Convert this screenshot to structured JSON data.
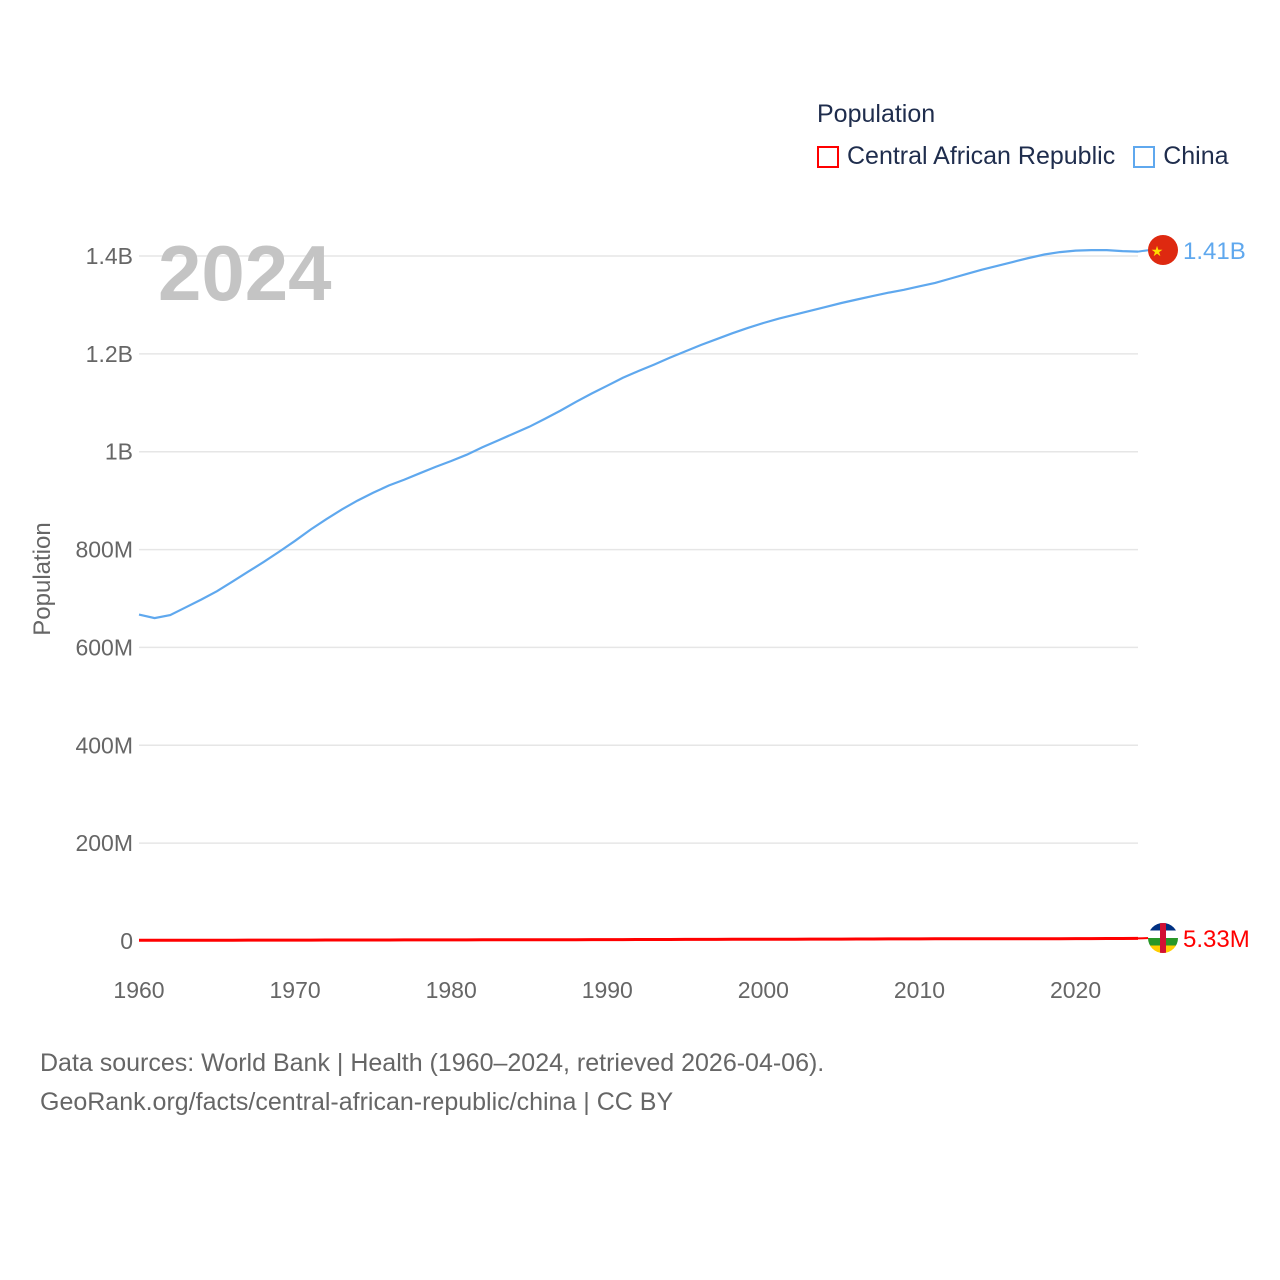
{
  "chart_data": {
    "type": "line",
    "title": "Population",
    "ylabel": "Population",
    "xlabel": "",
    "year_watermark": "2024",
    "xlim": [
      1960,
      2024
    ],
    "ylim": [
      0,
      1400000000
    ],
    "x_ticks": [
      1960,
      1970,
      1980,
      1990,
      2000,
      2010,
      2020
    ],
    "y_ticks": [
      {
        "value": 0,
        "label": "0"
      },
      {
        "value": 200000000,
        "label": "200M"
      },
      {
        "value": 400000000,
        "label": "400M"
      },
      {
        "value": 600000000,
        "label": "600M"
      },
      {
        "value": 800000000,
        "label": "800M"
      },
      {
        "value": 1000000000,
        "label": "1B"
      },
      {
        "value": 1200000000,
        "label": "1.2B"
      },
      {
        "value": 1400000000,
        "label": "1.4B"
      }
    ],
    "grid": true,
    "legend_position": "top-right",
    "x": [
      1960,
      1961,
      1962,
      1963,
      1964,
      1965,
      1966,
      1967,
      1968,
      1969,
      1970,
      1971,
      1972,
      1973,
      1974,
      1975,
      1976,
      1977,
      1978,
      1979,
      1980,
      1981,
      1982,
      1983,
      1984,
      1985,
      1986,
      1987,
      1988,
      1989,
      1990,
      1991,
      1992,
      1993,
      1994,
      1995,
      1996,
      1997,
      1998,
      1999,
      2000,
      2001,
      2002,
      2003,
      2004,
      2005,
      2006,
      2007,
      2008,
      2009,
      2010,
      2011,
      2012,
      2013,
      2014,
      2015,
      2016,
      2017,
      2018,
      2019,
      2020,
      2021,
      2022,
      2023,
      2024
    ],
    "series": [
      {
        "name": "Central African Republic",
        "color": "#ff0000",
        "end_label": "5.33M",
        "flag": "central-african-republic",
        "values_millions": [
          1.5,
          1.53,
          1.56,
          1.6,
          1.63,
          1.67,
          1.71,
          1.75,
          1.79,
          1.83,
          1.87,
          1.91,
          1.95,
          1.99,
          2.03,
          2.07,
          2.11,
          2.15,
          2.19,
          2.23,
          2.27,
          2.32,
          2.37,
          2.42,
          2.48,
          2.54,
          2.6,
          2.66,
          2.72,
          2.79,
          2.86,
          2.93,
          3.01,
          3.08,
          3.15,
          3.22,
          3.29,
          3.36,
          3.43,
          3.5,
          3.58,
          3.66,
          3.74,
          3.82,
          3.9,
          3.98,
          4.06,
          4.14,
          4.22,
          4.3,
          4.38,
          4.44,
          4.48,
          4.47,
          4.52,
          4.58,
          4.63,
          4.67,
          4.72,
          4.79,
          4.88,
          4.98,
          5.1,
          5.21,
          5.33
        ]
      },
      {
        "name": "China",
        "color": "#5fa8ee",
        "end_label": "1.41B",
        "flag": "china",
        "values_millions": [
          667,
          660,
          666,
          682,
          698,
          715,
          735,
          755,
          775,
          796,
          818,
          841,
          862,
          882,
          900,
          916,
          931,
          943,
          956,
          969,
          981,
          994,
          1009,
          1023,
          1037,
          1051,
          1067,
          1084,
          1102,
          1119,
          1135,
          1151,
          1165,
          1178,
          1192,
          1205,
          1218,
          1230,
          1242,
          1253,
          1263,
          1272,
          1280,
          1288,
          1296,
          1304,
          1311,
          1318,
          1325,
          1331,
          1338,
          1345,
          1354,
          1363,
          1372,
          1380,
          1388,
          1396,
          1403,
          1408,
          1411,
          1412,
          1412,
          1410,
          1409
        ]
      }
    ]
  },
  "legend": {
    "title": "Population",
    "items": [
      "Central African Republic",
      "China"
    ]
  },
  "footer": {
    "line1": "Data sources: World Bank | Health (1960–2024, retrieved 2026-04-06).",
    "line2": "GeoRank.org/facts/central-african-republic/china | CC BY"
  }
}
